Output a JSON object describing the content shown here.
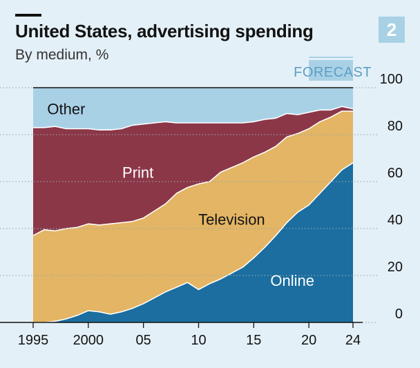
{
  "header": {
    "title": "United States, advertising spending",
    "subtitle": "By medium, %",
    "badge": "2"
  },
  "colors": {
    "background": "#e4f0f7",
    "other": "#a9d1e6",
    "print": "#8b3748",
    "television": "#e3b564",
    "online": "#1b6e9f",
    "forecast_box": "#a9d1e6",
    "forecast_text": "#5c9ec4",
    "axis": "#121212",
    "grid": "#9aa6ae",
    "label_dark": "#121212",
    "label_light": "#ffffff"
  },
  "chart_data": {
    "type": "area",
    "stacked": true,
    "percent": true,
    "title": "United States, advertising spending",
    "subtitle": "By medium, %",
    "x": [
      1995,
      1996,
      1997,
      1998,
      1999,
      2000,
      2001,
      2002,
      2003,
      2004,
      2005,
      2006,
      2007,
      2008,
      2009,
      2010,
      2011,
      2012,
      2013,
      2014,
      2015,
      2016,
      2017,
      2018,
      2019,
      2020,
      2021,
      2022,
      2023,
      2024
    ],
    "series": [
      {
        "name": "Online",
        "values": [
          0,
          0,
          0.5,
          1.5,
          3,
          5,
          4.5,
          3.5,
          4.5,
          6,
          8,
          10.5,
          13,
          15,
          17,
          14,
          16.5,
          18.5,
          21,
          23.5,
          27.5,
          32,
          37,
          42.5,
          47,
          50,
          55,
          60,
          65,
          68
        ]
      },
      {
        "name": "Television",
        "values": [
          37,
          39.5,
          38.5,
          38.5,
          37.5,
          37,
          37,
          38.5,
          38,
          37,
          36.5,
          37,
          37.5,
          40,
          40.5,
          45,
          43.5,
          45.5,
          45,
          44.5,
          43,
          40.5,
          38,
          36.5,
          33.5,
          32.5,
          30.5,
          27.5,
          25,
          22
        ]
      },
      {
        "name": "Print",
        "values": [
          46,
          43.5,
          44.5,
          42.5,
          42,
          40.5,
          40.5,
          40,
          40,
          41,
          40,
          37.5,
          35,
          30,
          27.5,
          26,
          25,
          21,
          19,
          17,
          15,
          14,
          12,
          10,
          8,
          7,
          5,
          3,
          2,
          1
        ]
      },
      {
        "name": "Other",
        "values": [
          17,
          17,
          16.5,
          17.5,
          17.5,
          17.5,
          18,
          18,
          17.5,
          16,
          15.5,
          15,
          14.5,
          15,
          15,
          15,
          15,
          15,
          15,
          15,
          14.5,
          13.5,
          13,
          11,
          11.5,
          10.5,
          9.5,
          9.5,
          8,
          9
        ]
      }
    ],
    "xticks": [
      1995,
      2000,
      2005,
      2010,
      2015,
      2020,
      2024
    ],
    "xtick_labels": [
      "1995",
      "2000",
      "05",
      "10",
      "15",
      "20",
      "24"
    ],
    "yticks": [
      0,
      20,
      40,
      60,
      80,
      100
    ],
    "ylim": [
      0,
      100
    ],
    "xlim": [
      1995,
      2024
    ],
    "y_axis_side": "right",
    "grid": true,
    "forecast": {
      "label": "FORECAST",
      "start": 2020,
      "end": 2024
    },
    "annotations": [
      {
        "text": "Other",
        "x": 1998,
        "y": 91,
        "color": "label_dark"
      },
      {
        "text": "Print",
        "x": 2004.5,
        "y": 64,
        "color": "label_light"
      },
      {
        "text": "Television",
        "x": 2013,
        "y": 44,
        "color": "label_dark"
      },
      {
        "text": "Online",
        "x": 2018.5,
        "y": 18,
        "color": "label_light"
      }
    ]
  }
}
